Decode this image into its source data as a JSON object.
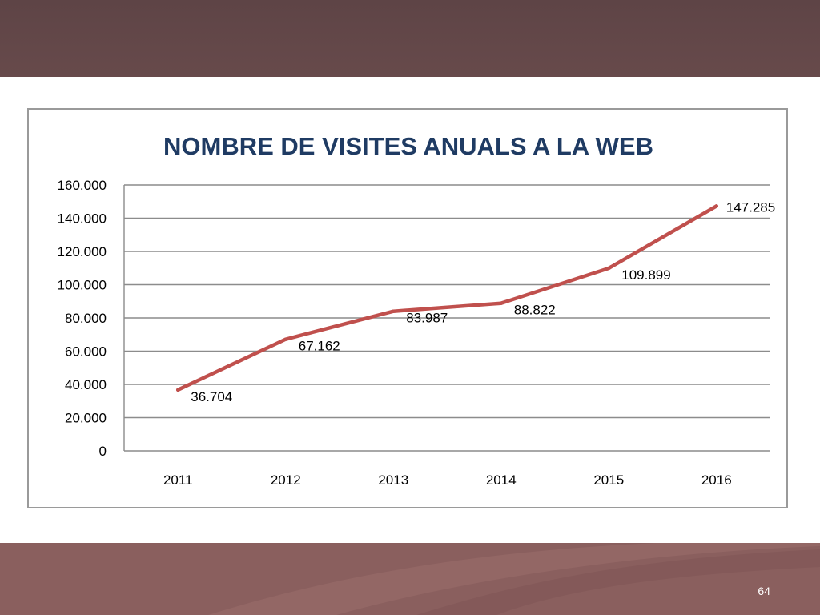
{
  "slide": {
    "page_number": "64",
    "colors": {
      "top_band": "#62474a",
      "bottom_band": "#8a5f5e",
      "line": "#c0504d",
      "title": "#1f3b63"
    }
  },
  "chart_data": {
    "type": "line",
    "title": "NOMBRE DE VISITES ANUALS A LA WEB",
    "categories": [
      "2011",
      "2012",
      "2013",
      "2014",
      "2015",
      "2016"
    ],
    "series": [
      {
        "values": [
          36704,
          67162,
          83987,
          88822,
          109899,
          147285
        ],
        "data_labels": [
          "36.704",
          "67.162",
          "83.987",
          "88.822",
          "109.899",
          "147.285"
        ],
        "color": "#c0504d"
      }
    ],
    "y_ticks": [
      "0",
      "20.000",
      "40.000",
      "60.000",
      "80.000",
      "100.000",
      "120.000",
      "140.000",
      "160.000"
    ],
    "ylim": [
      0,
      160000
    ],
    "y_step": 20000,
    "grid": true,
    "legend": "none"
  }
}
